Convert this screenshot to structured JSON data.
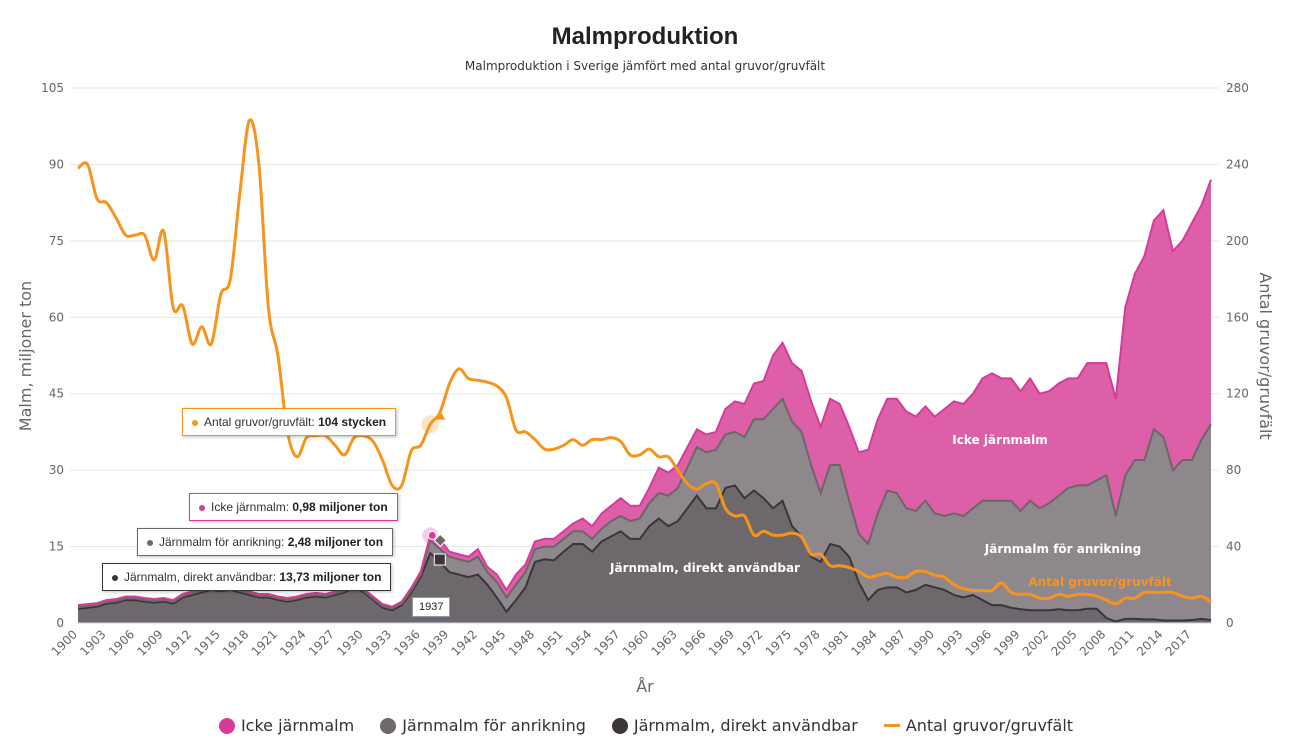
{
  "chart_data": {
    "type": "area",
    "stacked": true,
    "title": "Malmproduktion",
    "subtitle": "Malmproduktion i Sverige jämfört med antal gruvor/gruvfält",
    "xlabel": "År",
    "ylabel": "Malm, miljoner ton",
    "ylabel_right": "Antal gruvor/gruvfält",
    "ylim": [
      0,
      105
    ],
    "ylim_right": [
      0,
      280
    ],
    "yticks": [
      0,
      15,
      30,
      45,
      60,
      75,
      90,
      105
    ],
    "yticks_right": [
      0,
      40,
      80,
      120,
      160,
      200,
      240,
      280
    ],
    "xticks": [
      "1900",
      "1903",
      "1906",
      "1909",
      "1912",
      "1915",
      "1918",
      "1921",
      "1924",
      "1927",
      "1930",
      "1933",
      "1936",
      "1939",
      "1942",
      "1945",
      "1948",
      "1951",
      "1954",
      "1957",
      "1960",
      "1963",
      "1966",
      "1969",
      "1972",
      "1975",
      "1978",
      "1981",
      "1984",
      "1987",
      "1990",
      "1993",
      "1996",
      "1999",
      "2002",
      "2005",
      "2008",
      "2011",
      "2014",
      "2017"
    ],
    "grid": true,
    "legend": "bottom",
    "x_start": 1900,
    "x_end": 2019,
    "series": [
      {
        "name": "Järnmalm, direkt användbar",
        "color": "#6d686c",
        "stroke": "#3a3538",
        "axis": "left",
        "values": [
          2.8,
          3,
          3.2,
          3.8,
          4,
          4.5,
          4.5,
          4.2,
          4,
          4.2,
          3.8,
          5,
          5.5,
          6,
          6.5,
          6.2,
          6.5,
          6,
          5.5,
          5,
          5,
          4.5,
          4.2,
          4.5,
          5,
          5.2,
          5,
          5.5,
          6,
          7,
          6,
          4.5,
          3,
          2.5,
          3.5,
          6,
          9,
          13.73,
          12,
          10,
          9.5,
          9,
          9.5,
          7.5,
          5,
          2.2,
          4.5,
          7,
          12,
          12.5,
          12.3,
          14,
          15.5,
          15.5,
          14,
          16,
          17,
          18,
          16.5,
          16.5,
          19,
          20.5,
          19,
          20,
          22.5,
          25,
          22.5,
          22.5,
          26.5,
          27,
          24.5,
          26,
          24.5,
          22.5,
          24,
          19,
          17,
          13,
          12,
          15.5,
          15,
          13,
          8,
          4.5,
          6.5,
          7,
          7,
          6,
          6.5,
          7.5,
          7,
          6.5,
          5.5,
          5,
          5.5,
          4.5,
          3.5,
          3.5,
          3,
          2.7,
          2.5,
          2.5,
          2.5,
          2.7,
          2.5,
          2.5,
          2.8,
          2.8,
          1,
          0.3,
          0.8,
          0.8,
          0.7,
          0.7,
          0.5,
          0.5,
          0.5,
          0.6,
          0.8,
          0.6
        ]
      },
      {
        "name": "Järnmalm för anrikning",
        "color": "#8e888c",
        "stroke": "#6b6669",
        "axis": "left",
        "values": [
          0.3,
          0.3,
          0.3,
          0.3,
          0.3,
          0.3,
          0.3,
          0.3,
          0.3,
          0.3,
          0.3,
          0.3,
          0.3,
          0.3,
          0.3,
          0.3,
          0.3,
          0.3,
          0.3,
          0.3,
          0.3,
          0.3,
          0.3,
          0.3,
          0.3,
          0.3,
          0.3,
          0.3,
          0.3,
          0.3,
          0.3,
          0.3,
          0.3,
          0.3,
          0.3,
          0.4,
          0.5,
          2.48,
          2.5,
          3,
          3,
          3,
          3.5,
          2.5,
          3,
          2.8,
          3,
          3,
          2.5,
          2.5,
          2.7,
          2.5,
          2.5,
          2.5,
          2.5,
          2.5,
          3,
          3,
          3.5,
          4,
          4.5,
          5,
          6,
          6.5,
          8,
          9.5,
          11,
          11.5,
          10.5,
          10.5,
          12,
          14,
          15.5,
          19.5,
          20,
          20.5,
          20.5,
          18,
          13.5,
          15.5,
          16,
          11,
          9.5,
          11,
          15,
          19,
          18.5,
          16.5,
          15.5,
          16.5,
          14.5,
          14.5,
          16,
          16,
          17,
          19.5,
          20.5,
          20.5,
          21,
          19.3,
          21.5,
          20,
          21,
          22.3,
          24,
          24.5,
          24.2,
          25.2,
          28,
          20.7,
          28.2,
          31.2,
          31.3,
          37.3,
          36,
          29.5,
          31.5,
          31.4,
          35.2,
          38.4
        ]
      },
      {
        "name": "Icke järnmalm",
        "color": "#dd5fa8",
        "stroke": "#d63c97",
        "axis": "left",
        "values": [
          0.4,
          0.4,
          0.4,
          0.4,
          0.4,
          0.4,
          0.4,
          0.4,
          0.4,
          0.4,
          0.4,
          0.4,
          0.4,
          0.4,
          0.4,
          0.4,
          0.4,
          0.4,
          0.4,
          0.4,
          0.4,
          0.4,
          0.4,
          0.4,
          0.4,
          0.4,
          0.4,
          0.4,
          0.4,
          0.4,
          0.4,
          0.4,
          0.4,
          0.4,
          0.4,
          0.5,
          0.6,
          0.98,
          2,
          1,
          1,
          1,
          1.5,
          1,
          1.5,
          1.5,
          2,
          1.5,
          1.5,
          1.5,
          1.5,
          1.5,
          1.5,
          2.5,
          2.5,
          3,
          3,
          3.5,
          3,
          2.5,
          3,
          5,
          4.5,
          4.5,
          4,
          3.5,
          3.5,
          3.5,
          5,
          6,
          6.5,
          7,
          7.5,
          10.5,
          11,
          11.5,
          12,
          12.5,
          13,
          13,
          12,
          14.5,
          16,
          18.5,
          18.5,
          18,
          18.5,
          19,
          18.5,
          18.5,
          19,
          21,
          22,
          22,
          22.5,
          24,
          25,
          24,
          24,
          23.5,
          24,
          22.5,
          22,
          22,
          21.5,
          21,
          24,
          23,
          22,
          23,
          33,
          36.5,
          40,
          41,
          44.5,
          43,
          43,
          46.5,
          46,
          48
        ]
      },
      {
        "name": "Antal gruvor/gruvfält",
        "color": "#f7941d",
        "axis": "right",
        "type": "line",
        "values": [
          238,
          240,
          222,
          220,
          212,
          203,
          203,
          203,
          190,
          205,
          165,
          166,
          146,
          155,
          146,
          172,
          180,
          225,
          263,
          240,
          165,
          140,
          100,
          87,
          97,
          98,
          98,
          93,
          88,
          97,
          98,
          95,
          85,
          72,
          72,
          90,
          93,
          104,
          110,
          125,
          133,
          128,
          127,
          126,
          124,
          118,
          101,
          100,
          96,
          91,
          91,
          93,
          96,
          93,
          96,
          96,
          97,
          95,
          88,
          88,
          91,
          87,
          87,
          80,
          73,
          70,
          73,
          73,
          60,
          56,
          56,
          46,
          48,
          46,
          46,
          47,
          45,
          36,
          36,
          30,
          30,
          29,
          27,
          24,
          25,
          26,
          24,
          24,
          27,
          27,
          25,
          24,
          20,
          18,
          17,
          17,
          17,
          21,
          16,
          15,
          15,
          13,
          13,
          15,
          14,
          15,
          15,
          14,
          12,
          10,
          13,
          13,
          16,
          16,
          16,
          16,
          14,
          13,
          14,
          11
        ]
      }
    ],
    "inline_labels": {
      "direct": "Järnmalm, direkt användbar",
      "icke": "Icke järnmalm",
      "anrikning": "Järnmalm för anrikning",
      "mines": "Antal gruvor/gruvfält"
    },
    "tooltip": {
      "year": "1937",
      "mines": {
        "label": "Antal gruvor/gruvfält: ",
        "value": "104 stycken"
      },
      "icke": {
        "label": "Icke järnmalm: ",
        "value": "0,98 miljoner ton"
      },
      "anrikning": {
        "label": "Järnmalm för anrikning: ",
        "value": "2,48 miljoner ton"
      },
      "direct": {
        "label": "Järnmalm, direkt användbar: ",
        "value": "13,73 miljoner ton"
      }
    },
    "legend_items": [
      "Icke järnmalm",
      "Järnmalm för anrikning",
      "Järnmalm, direkt användbar",
      "Antal gruvor/gruvfält"
    ]
  }
}
